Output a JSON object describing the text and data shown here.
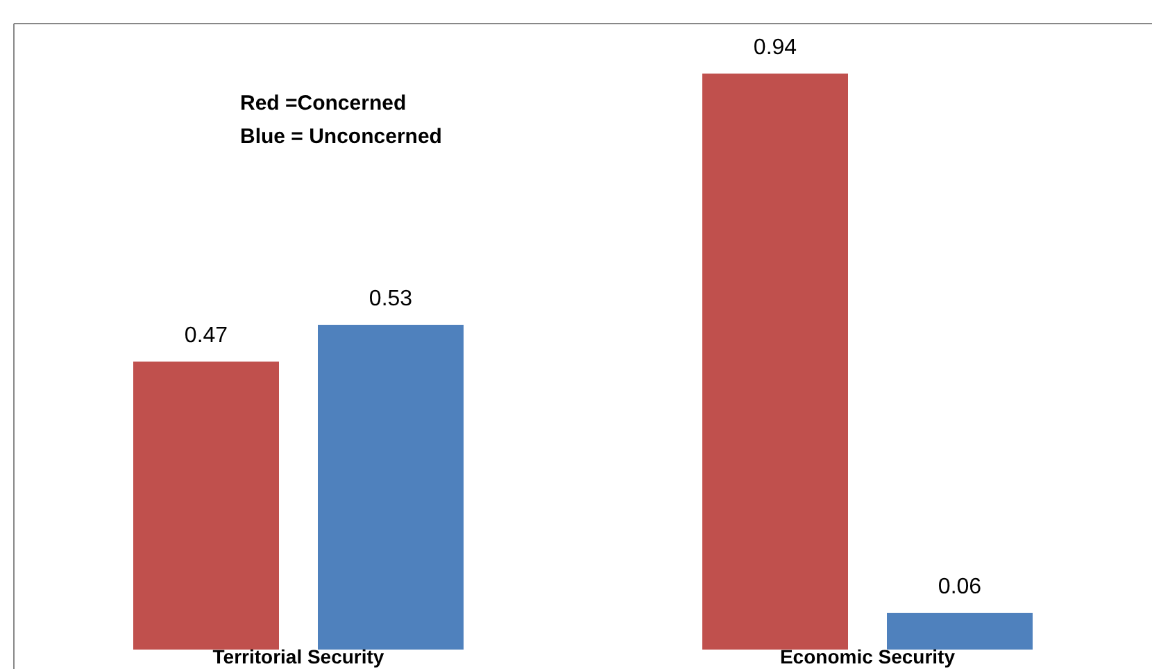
{
  "chart_data": {
    "type": "bar",
    "categories": [
      "Territorial Security",
      "Economic Security"
    ],
    "series": [
      {
        "color": "#c0504d",
        "values": [
          0.47,
          0.94
        ]
      },
      {
        "color": "#4f81bd",
        "values": [
          0.53,
          0.06
        ]
      }
    ],
    "data_labels": true,
    "annotations": [
      "Red =Concerned",
      "Blue = Unconcerned"
    ]
  }
}
